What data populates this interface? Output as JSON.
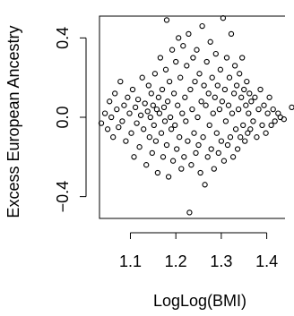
{
  "chart_data": {
    "type": "scatter",
    "title": "",
    "xlabel": "LogLog(BMI)",
    "ylabel": "Excess European Ancestry",
    "xlim": [
      1.032,
      1.46
    ],
    "ylim": [
      -0.51,
      0.51
    ],
    "x_ticks": [
      1.1,
      1.2,
      1.3,
      1.4
    ],
    "x_tick_labels": [
      "1.1",
      "1.2",
      "1.3",
      "1.4"
    ],
    "y_ticks": [
      -0.4,
      0.0,
      0.4
    ],
    "y_tick_labels": [
      "−0.4",
      "0.0",
      "0.4"
    ],
    "grid": false,
    "marker": "open-circle",
    "color": "#000000",
    "points": [
      [
        1.036,
        -0.03
      ],
      [
        1.044,
        0.02
      ],
      [
        1.05,
        -0.06
      ],
      [
        1.054,
        0.08
      ],
      [
        1.058,
        0.0
      ],
      [
        1.062,
        -0.1
      ],
      [
        1.066,
        0.12
      ],
      [
        1.07,
        0.04
      ],
      [
        1.074,
        -0.05
      ],
      [
        1.078,
        0.18
      ],
      [
        1.082,
        -0.02
      ],
      [
        1.086,
        0.06
      ],
      [
        1.09,
        -0.12
      ],
      [
        1.094,
        0.1
      ],
      [
        1.098,
        0.02
      ],
      [
        1.102,
        -0.08
      ],
      [
        1.105,
        0.14
      ],
      [
        1.108,
        -0.2
      ],
      [
        1.111,
        0.05
      ],
      [
        1.114,
        -0.03
      ],
      [
        1.117,
        0.09
      ],
      [
        1.12,
        -0.15
      ],
      [
        1.123,
        0.01
      ],
      [
        1.126,
        0.2
      ],
      [
        1.129,
        -0.06
      ],
      [
        1.132,
        0.07
      ],
      [
        1.135,
        -0.24
      ],
      [
        1.138,
        0.03
      ],
      [
        1.14,
        0.16
      ],
      [
        1.142,
        -0.1
      ],
      [
        1.144,
        0.0
      ],
      [
        1.146,
        0.12
      ],
      [
        1.148,
        -0.18
      ],
      [
        1.15,
        0.06
      ],
      [
        1.152,
        -0.04
      ],
      [
        1.154,
        0.22
      ],
      [
        1.156,
        -0.12
      ],
      [
        1.158,
        0.04
      ],
      [
        1.16,
        -0.28
      ],
      [
        1.162,
        0.1
      ],
      [
        1.164,
        0.02
      ],
      [
        1.166,
        0.3
      ],
      [
        1.168,
        -0.08
      ],
      [
        1.17,
        0.14
      ],
      [
        1.172,
        -0.2
      ],
      [
        1.174,
        0.05
      ],
      [
        1.176,
        -0.02
      ],
      [
        1.178,
        0.24
      ],
      [
        1.18,
        0.49
      ],
      [
        1.18,
        -0.14
      ],
      [
        1.182,
        0.08
      ],
      [
        1.184,
        -0.3
      ],
      [
        1.186,
        0.18
      ],
      [
        1.188,
        0.0
      ],
      [
        1.19,
        -0.06
      ],
      [
        1.192,
        0.34
      ],
      [
        1.194,
        -0.22
      ],
      [
        1.196,
        0.12
      ],
      [
        1.198,
        -0.04
      ],
      [
        1.2,
        0.28
      ],
      [
        1.202,
        -0.16
      ],
      [
        1.204,
        0.06
      ],
      [
        1.206,
        0.4
      ],
      [
        1.208,
        -0.1
      ],
      [
        1.21,
        0.2
      ],
      [
        1.212,
        -0.26
      ],
      [
        1.214,
        0.02
      ],
      [
        1.216,
        0.36
      ],
      [
        1.218,
        -0.2
      ],
      [
        1.22,
        0.1
      ],
      [
        1.222,
        -0.02
      ],
      [
        1.224,
        0.26
      ],
      [
        1.226,
        -0.12
      ],
      [
        1.228,
        0.42
      ],
      [
        1.23,
        -0.48
      ],
      [
        1.232,
        0.14
      ],
      [
        1.234,
        -0.24
      ],
      [
        1.236,
        0.04
      ],
      [
        1.238,
        0.3
      ],
      [
        1.24,
        -0.08
      ],
      [
        1.242,
        0.18
      ],
      [
        1.244,
        -0.18
      ],
      [
        1.246,
        0.34
      ],
      [
        1.248,
        0.0
      ],
      [
        1.25,
        -0.14
      ],
      [
        1.252,
        0.22
      ],
      [
        1.254,
        -0.28
      ],
      [
        1.256,
        0.08
      ],
      [
        1.258,
        0.46
      ],
      [
        1.26,
        -0.1
      ],
      [
        1.262,
        0.16
      ],
      [
        1.264,
        -0.34
      ],
      [
        1.266,
        0.06
      ],
      [
        1.268,
        0.28
      ],
      [
        1.27,
        -0.2
      ],
      [
        1.272,
        0.12
      ],
      [
        1.274,
        -0.04
      ],
      [
        1.276,
        0.38
      ],
      [
        1.278,
        -0.16
      ],
      [
        1.28,
        0.2
      ],
      [
        1.282,
        0.02
      ],
      [
        1.284,
        -0.26
      ],
      [
        1.286,
        0.1
      ],
      [
        1.288,
        0.32
      ],
      [
        1.29,
        -0.08
      ],
      [
        1.292,
        0.16
      ],
      [
        1.294,
        -0.18
      ],
      [
        1.296,
        0.04
      ],
      [
        1.298,
        0.24
      ],
      [
        1.3,
        -0.12
      ],
      [
        1.302,
        0.08
      ],
      [
        1.304,
        0.5
      ],
      [
        1.306,
        -0.22
      ],
      [
        1.308,
        0.14
      ],
      [
        1.31,
        -0.02
      ],
      [
        1.312,
        0.3
      ],
      [
        1.314,
        -0.14
      ],
      [
        1.316,
        0.06
      ],
      [
        1.318,
        0.2
      ],
      [
        1.32,
        -0.1
      ],
      [
        1.322,
        0.42
      ],
      [
        1.324,
        0.02
      ],
      [
        1.326,
        -0.2
      ],
      [
        1.328,
        0.12
      ],
      [
        1.33,
        0.26
      ],
      [
        1.332,
        -0.06
      ],
      [
        1.334,
        0.16
      ],
      [
        1.336,
        -0.16
      ],
      [
        1.338,
        0.04
      ],
      [
        1.34,
        0.22
      ],
      [
        1.342,
        -0.1
      ],
      [
        1.344,
        0.1
      ],
      [
        1.346,
        0.3
      ],
      [
        1.348,
        -0.04
      ],
      [
        1.35,
        0.14
      ],
      [
        1.352,
        -0.12
      ],
      [
        1.354,
        0.06
      ],
      [
        1.356,
        0.18
      ],
      [
        1.358,
        -0.08
      ],
      [
        1.36,
        0.02
      ],
      [
        1.362,
        0.12
      ],
      [
        1.364,
        -0.06
      ],
      [
        1.366,
        0.08
      ],
      [
        1.37,
        -0.02
      ],
      [
        1.374,
        0.1
      ],
      [
        1.378,
        -0.1
      ],
      [
        1.382,
        0.04
      ],
      [
        1.386,
        0.14
      ],
      [
        1.39,
        -0.04
      ],
      [
        1.394,
        0.06
      ],
      [
        1.398,
        -0.08
      ],
      [
        1.402,
        0.02
      ],
      [
        1.406,
        0.1
      ],
      [
        1.41,
        -0.04
      ],
      [
        1.414,
        0.04
      ],
      [
        1.418,
        -0.02
      ],
      [
        1.425,
        0.02
      ],
      [
        1.43,
        0.0
      ],
      [
        1.438,
        -0.01
      ],
      [
        1.455,
        0.05
      ]
    ]
  }
}
